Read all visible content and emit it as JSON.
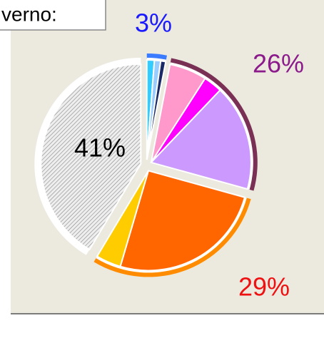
{
  "chart_data": {
    "type": "pie",
    "title": "verno:",
    "groups": [
      {
        "value": 3,
        "value_label": "3%",
        "label_color": "#1a1aff",
        "border_color": "#3a7bff",
        "slices": [
          {
            "value": 1.2,
            "color": "#33ccff"
          },
          {
            "value": 1,
            "color": "#99ccff"
          },
          {
            "value": 0.8,
            "color": "#1a2a66"
          }
        ]
      },
      {
        "value": 26,
        "value_label": "26%",
        "label_color": "#8b1a8b",
        "border_color": "#7a3055",
        "slices": [
          {
            "value": 6,
            "color": "#ff99cc"
          },
          {
            "value": 3,
            "color": "#ff00ff"
          },
          {
            "value": 17,
            "color": "#cc99ff"
          }
        ]
      },
      {
        "value": 29,
        "value_label": "29%",
        "label_color": "#ee1111",
        "border_color": "#ff8c00",
        "slices": [
          {
            "value": 25,
            "color": "#ff6600"
          },
          {
            "value": 4,
            "color": "#ffcc00"
          }
        ]
      },
      {
        "value": 41,
        "value_label": "41%",
        "label_color": "#000000",
        "border_color": "#ffffff",
        "slices": [
          {
            "value": 41,
            "color": "hatch"
          }
        ]
      }
    ]
  }
}
